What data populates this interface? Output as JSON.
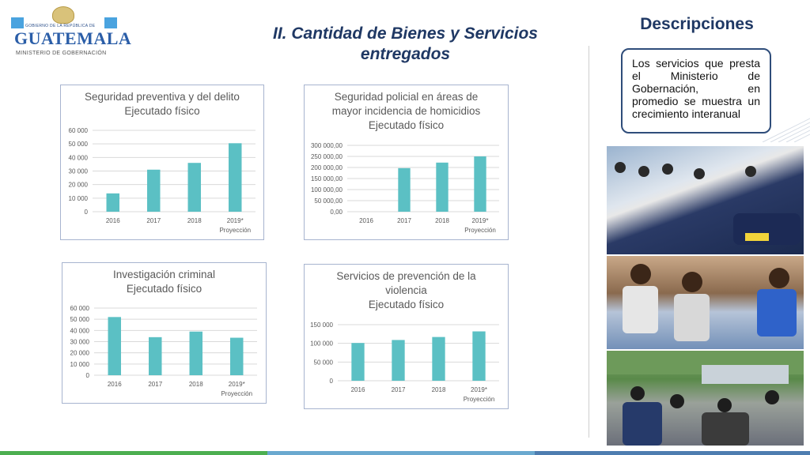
{
  "header": {
    "logo": {
      "subtitle": "GOBIERNO DE LA REPÚBLICA DE",
      "name": "GUATEMALA",
      "ministry": "MINISTERIO DE GOBERNACIÓN",
      "icon": "coat-of-arms-icon"
    },
    "title": "II. Cantidad de Bienes y Servicios entregados"
  },
  "descriptions": {
    "title": "Descripciones",
    "text": "Los servicios que presta el Ministerio de Gobernación, en promedio se muestra un crecimiento interanual"
  },
  "colors": {
    "bar": "#5bc0c4",
    "title": "#1f3864",
    "chart_border": "#a7b4cf"
  },
  "chart_data": [
    {
      "type": "bar",
      "title_lines": [
        "Seguridad preventiva y del delito",
        "Ejecutado físico"
      ],
      "categories": [
        "2016",
        "2017",
        "2018",
        "2019*"
      ],
      "category_sublabels": [
        "",
        "",
        "",
        "Proyección"
      ],
      "values": [
        13500,
        31000,
        36000,
        50500
      ],
      "ylim": [
        0,
        60000
      ],
      "yticks": [
        0,
        10000,
        20000,
        30000,
        40000,
        50000,
        60000
      ],
      "ytick_labels": [
        "0",
        "10 000",
        "20 000",
        "30 000",
        "40 000",
        "50 000",
        "60 000"
      ],
      "grid": true
    },
    {
      "type": "bar",
      "title_lines": [
        "Seguridad policial en áreas de",
        "mayor incidencia de homicidios",
        "Ejecutado físico"
      ],
      "categories": [
        "2016",
        "2017",
        "2018",
        "2019*"
      ],
      "category_sublabels": [
        "",
        "",
        "",
        "Proyección"
      ],
      "values": [
        0,
        197000,
        222000,
        250000
      ],
      "ylim": [
        0,
        300000
      ],
      "yticks": [
        0,
        50000,
        100000,
        150000,
        200000,
        250000,
        300000
      ],
      "ytick_labels": [
        "0,00",
        "50 000,00",
        "100 000,00",
        "150 000,00",
        "200 000,00",
        "250 000,00",
        "300 000,00"
      ],
      "grid": true
    },
    {
      "type": "bar",
      "title_lines": [
        "Investigación criminal",
        "Ejecutado físico"
      ],
      "categories": [
        "2016",
        "2017",
        "2018",
        "2019*"
      ],
      "category_sublabels": [
        "",
        "",
        "",
        "Proyección"
      ],
      "values": [
        52000,
        34000,
        39000,
        33500
      ],
      "ylim": [
        0,
        60000
      ],
      "yticks": [
        0,
        10000,
        20000,
        30000,
        40000,
        50000,
        60000
      ],
      "ytick_labels": [
        "0",
        "10 000",
        "20 000",
        "30 000",
        "40 000",
        "50 000",
        "60 000"
      ],
      "grid": true
    },
    {
      "type": "bar",
      "title_lines": [
        "Servicios de prevención de la",
        "violencia",
        "Ejecutado físico"
      ],
      "categories": [
        "2016",
        "2017",
        "2018",
        "2019*"
      ],
      "category_sublabels": [
        "",
        "",
        "",
        "Proyección"
      ],
      "values": [
        101000,
        109000,
        117000,
        132000
      ],
      "ylim": [
        0,
        150000
      ],
      "yticks": [
        0,
        50000,
        100000,
        150000
      ],
      "ytick_labels": [
        "0",
        "50 000",
        "100 000",
        "150 000"
      ],
      "grid": true
    }
  ],
  "photos": [
    {
      "name": "police-officers-photo"
    },
    {
      "name": "children-photo"
    },
    {
      "name": "community-event-photo"
    }
  ]
}
